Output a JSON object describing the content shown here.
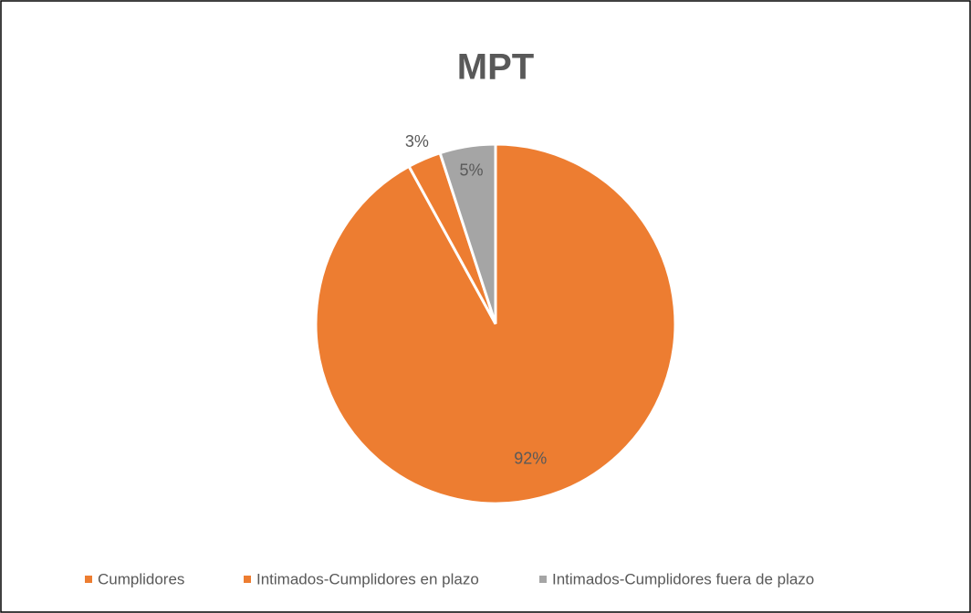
{
  "chart_data": {
    "type": "pie",
    "title": "MPT",
    "categories": [
      "Cumplidores",
      "Intimados-Cumplidores en plazo",
      "Intimados-Cumplidores fuera de plazo"
    ],
    "values": [
      92,
      3,
      5
    ],
    "value_labels": [
      "92%",
      "3%",
      "5%"
    ],
    "colors": [
      "#ed7d31",
      "#ed7d31",
      "#a5a5a5"
    ],
    "legend": "bottom"
  }
}
